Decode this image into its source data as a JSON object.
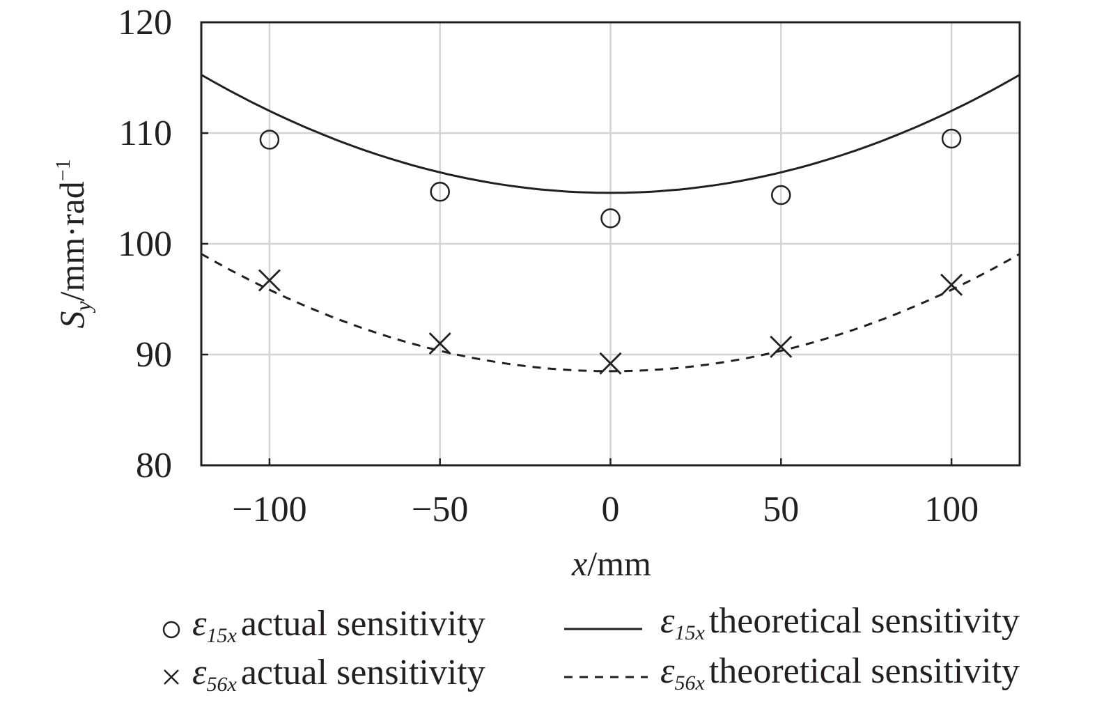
{
  "chart_data": {
    "type": "line",
    "title": "",
    "xlabel_var": "x",
    "xlabel_unit": "/mm",
    "ylabel_var": "S",
    "ylabel_sub": "y",
    "ylabel_unit": "/mm·rad",
    "ylabel_exp": "−1",
    "xlim": [
      -120,
      120
    ],
    "ylim": [
      80,
      120
    ],
    "xticks": [
      -100,
      -50,
      0,
      50,
      100
    ],
    "xtick_labels": [
      "−100",
      "−50",
      "0",
      "50",
      "100"
    ],
    "yticks": [
      80,
      90,
      100,
      110,
      120
    ],
    "ytick_labels": [
      "80",
      "90",
      "100",
      "110",
      "120"
    ],
    "grid": true,
    "legend_position": "bottom",
    "colors": {
      "ink": "#231f20",
      "grid": "#d4d4d4"
    },
    "series": [
      {
        "name": "ε15x actual sensitivity",
        "symbol": "ε",
        "subscript": "15x",
        "text": "actual sensitivity",
        "marker": "circle",
        "marker_glyph": "○",
        "x": [
          -100,
          -50,
          0,
          50,
          100
        ],
        "values": [
          109.4,
          104.7,
          102.3,
          104.4,
          109.5
        ]
      },
      {
        "name": "ε56x actual sensitivity",
        "symbol": "ε",
        "subscript": "56x",
        "text": "actual sensitivity",
        "marker": "cross",
        "marker_glyph": "×",
        "x": [
          -100,
          -50,
          0,
          50,
          100
        ],
        "values": [
          96.7,
          91.0,
          89.2,
          90.7,
          96.3
        ]
      },
      {
        "name": "ε15x theoretical sensitivity",
        "symbol": "ε",
        "subscript": "15x",
        "text": "theoretical sensitivity",
        "line": "solid",
        "curve": {
          "vertex_x": 0,
          "vertex_y": 104.6,
          "a": 0.00074
        }
      },
      {
        "name": "ε56x theoretical sensitivity",
        "symbol": "ε",
        "subscript": "56x",
        "text": "theoretical sensitivity",
        "line": "dashed",
        "curve": {
          "vertex_x": 0,
          "vertex_y": 88.5,
          "a": 0.000735
        }
      }
    ]
  }
}
